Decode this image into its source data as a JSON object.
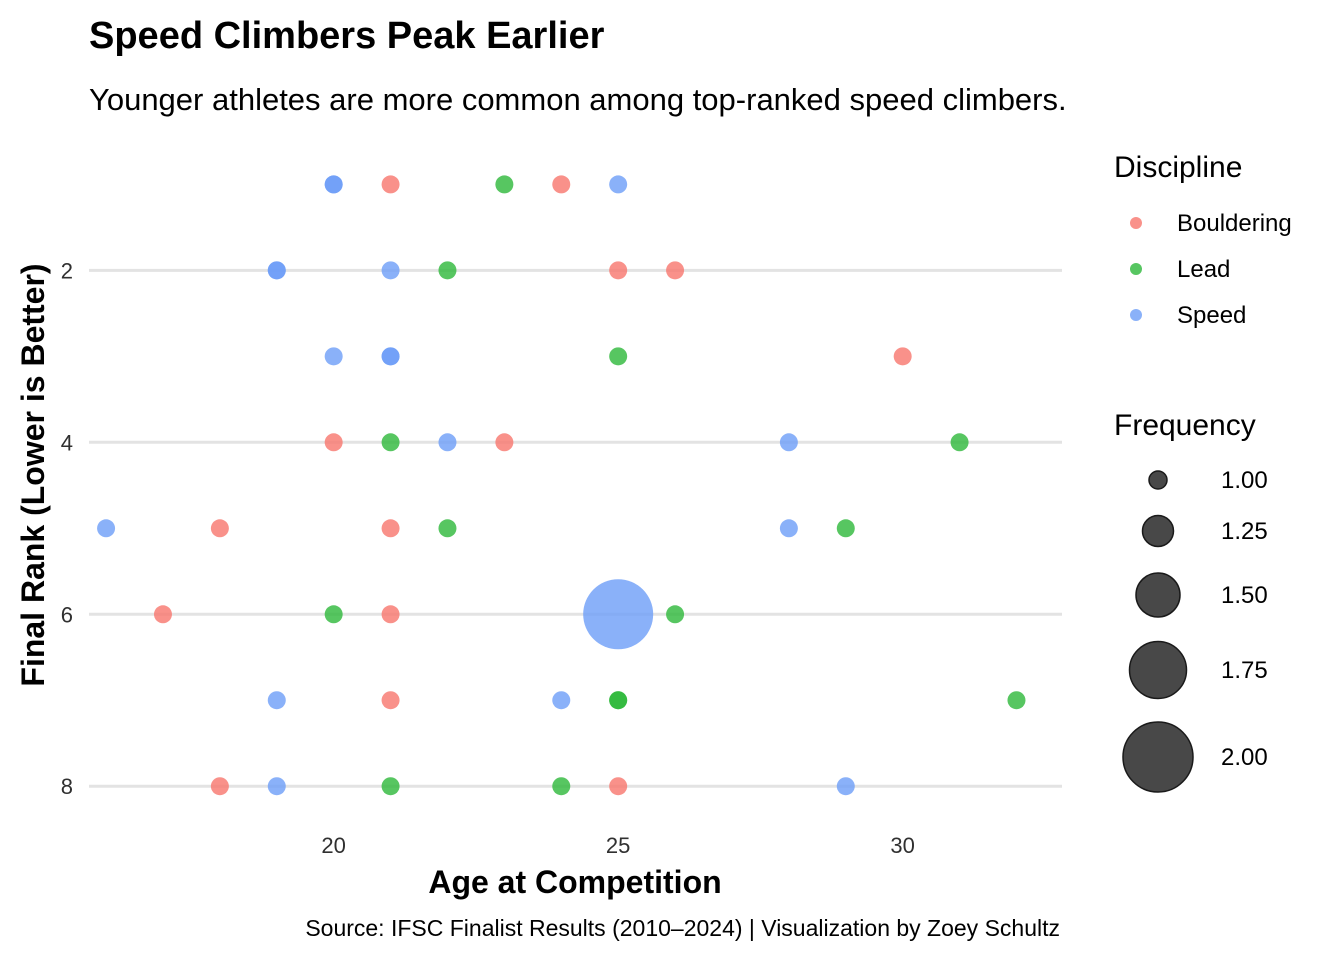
{
  "chart_data": {
    "type": "scatter",
    "title": "Speed Climbers Peak Earlier",
    "subtitle": "Younger athletes are more common among top-ranked speed climbers.",
    "xlabel": "Age at Competition",
    "ylabel": "Final Rank (Lower is Better)",
    "caption": "Source: IFSC Finalist Results (2010–2024) | Visualization by Zoey Schultz",
    "xlim": [
      15.7,
      32.8
    ],
    "ylim": [
      8.3,
      0.6
    ],
    "y_reversed": true,
    "x_ticks": [
      "20",
      "25",
      "30"
    ],
    "y_ticks": [
      "2",
      "4",
      "6",
      "8"
    ],
    "grid": "horizontal major gridlines",
    "legend_placement": "right",
    "legends": {
      "color": {
        "title": "Discipline",
        "entries": [
          {
            "label": "Bouldering",
            "color": "#F8766D"
          },
          {
            "label": "Lead",
            "color": "#2DB83A"
          },
          {
            "label": "Speed",
            "color": "#6D9EF8"
          }
        ]
      },
      "size": {
        "title": "Frequency",
        "entries": [
          {
            "label": "1.00",
            "value": 1.0
          },
          {
            "label": "1.25",
            "value": 1.25
          },
          {
            "label": "1.50",
            "value": 1.5
          },
          {
            "label": "1.75",
            "value": 1.75
          },
          {
            "label": "2.00",
            "value": 2.0
          }
        ]
      }
    },
    "series": [
      {
        "name": "Bouldering",
        "color": "#F8766D",
        "points": [
          {
            "x": 21,
            "y": 1,
            "frequency": 1
          },
          {
            "x": 24,
            "y": 1,
            "frequency": 1
          },
          {
            "x": 25,
            "y": 2,
            "frequency": 1
          },
          {
            "x": 26,
            "y": 2,
            "frequency": 1
          },
          {
            "x": 30,
            "y": 3,
            "frequency": 1
          },
          {
            "x": 20,
            "y": 4,
            "frequency": 1
          },
          {
            "x": 23,
            "y": 4,
            "frequency": 1
          },
          {
            "x": 18,
            "y": 5,
            "frequency": 1
          },
          {
            "x": 21,
            "y": 5,
            "frequency": 1
          },
          {
            "x": 17,
            "y": 6,
            "frequency": 1
          },
          {
            "x": 21,
            "y": 6,
            "frequency": 1
          },
          {
            "x": 21,
            "y": 7,
            "frequency": 1
          },
          {
            "x": 18,
            "y": 8,
            "frequency": 1
          },
          {
            "x": 25,
            "y": 8,
            "frequency": 1
          }
        ]
      },
      {
        "name": "Lead",
        "color": "#2DB83A",
        "points": [
          {
            "x": 23,
            "y": 1,
            "frequency": 1
          },
          {
            "x": 22,
            "y": 2,
            "frequency": 1
          },
          {
            "x": 25,
            "y": 3,
            "frequency": 1
          },
          {
            "x": 21,
            "y": 4,
            "frequency": 1
          },
          {
            "x": 31,
            "y": 4,
            "frequency": 1
          },
          {
            "x": 22,
            "y": 5,
            "frequency": 1
          },
          {
            "x": 29,
            "y": 5,
            "frequency": 1
          },
          {
            "x": 20,
            "y": 6,
            "frequency": 1
          },
          {
            "x": 26,
            "y": 6,
            "frequency": 1
          },
          {
            "x": 25,
            "y": 7,
            "frequency": 1
          },
          {
            "x": 25,
            "y": 7,
            "frequency": 1
          },
          {
            "x": 32,
            "y": 7,
            "frequency": 1
          },
          {
            "x": 21,
            "y": 8,
            "frequency": 1
          },
          {
            "x": 24,
            "y": 8,
            "frequency": 1
          }
        ]
      },
      {
        "name": "Speed",
        "color": "#6D9EF8",
        "points": [
          {
            "x": 20,
            "y": 1,
            "frequency": 1
          },
          {
            "x": 20,
            "y": 1,
            "frequency": 1
          },
          {
            "x": 25,
            "y": 1,
            "frequency": 1
          },
          {
            "x": 19,
            "y": 2,
            "frequency": 1
          },
          {
            "x": 19,
            "y": 2,
            "frequency": 1
          },
          {
            "x": 21,
            "y": 2,
            "frequency": 1
          },
          {
            "x": 20,
            "y": 3,
            "frequency": 1
          },
          {
            "x": 21,
            "y": 3,
            "frequency": 1
          },
          {
            "x": 21,
            "y": 3,
            "frequency": 1
          },
          {
            "x": 22,
            "y": 4,
            "frequency": 1
          },
          {
            "x": 28,
            "y": 4,
            "frequency": 1
          },
          {
            "x": 16,
            "y": 5,
            "frequency": 1
          },
          {
            "x": 28,
            "y": 5,
            "frequency": 1
          },
          {
            "x": 25,
            "y": 6,
            "frequency": 2
          },
          {
            "x": 19,
            "y": 7,
            "frequency": 1
          },
          {
            "x": 24,
            "y": 7,
            "frequency": 1
          },
          {
            "x": 19,
            "y": 8,
            "frequency": 1
          },
          {
            "x": 29,
            "y": 8,
            "frequency": 1
          }
        ]
      }
    ]
  }
}
